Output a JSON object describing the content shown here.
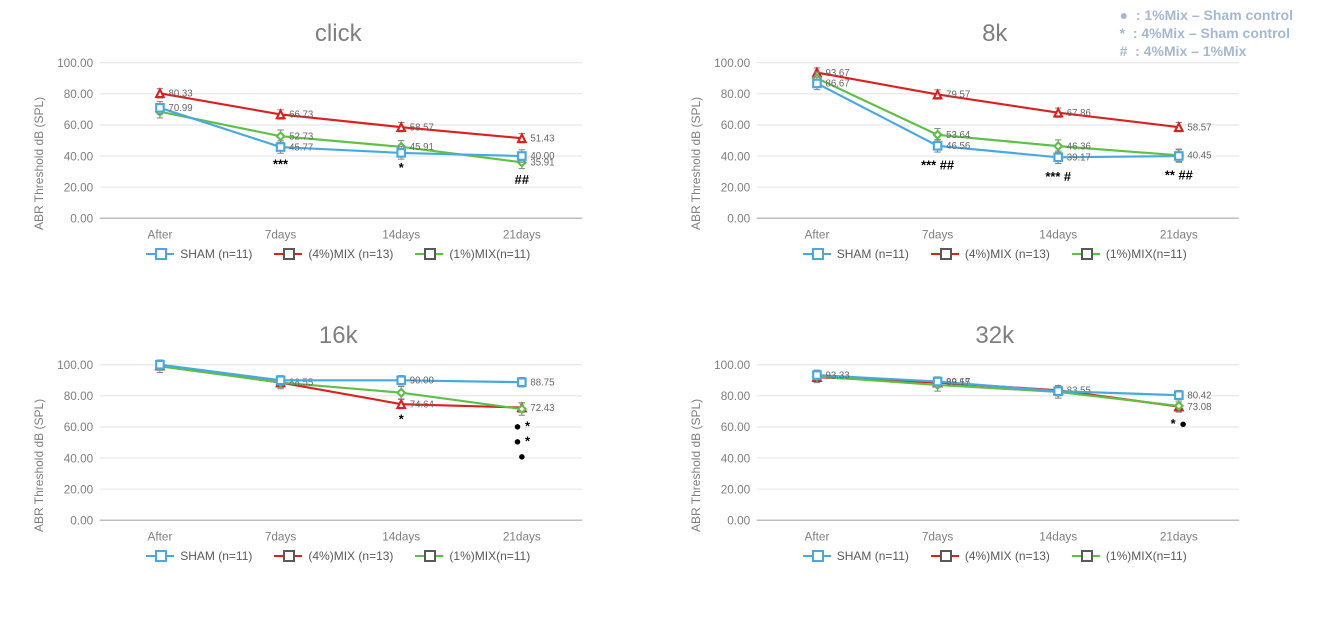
{
  "note": {
    "l1": "●  : 1%Mix – Sham control",
    "l2": "*  : 4%Mix – Sham control",
    "l3": "#  : 4%Mix – 1%Mix"
  },
  "common": {
    "ylabel": "ABR Threshold dB (SPL)",
    "ylim": [
      0,
      100
    ],
    "ytick_step": 20,
    "categories": [
      "After",
      "7days",
      "14days",
      "21days"
    ],
    "colors": {
      "sham": "#4aa8e0",
      "mix4": "#d92121",
      "mix1": "#5fbf47"
    },
    "grid_color": "#e6e6e6",
    "axis_color": "#b0b0b0",
    "background": "#ffffff",
    "marker": {
      "sham": "square",
      "mix4": "triangle",
      "mix1": "diamond"
    },
    "line_width": 2,
    "marker_size": 7,
    "title_fontsize": 24,
    "label_fontsize": 12
  },
  "legend": {
    "sham": "SHAM (n=11)",
    "mix4": "(4%)MIX (n=13)",
    "mix1": "(1%)MIX(n=11)"
  },
  "panels": [
    {
      "key": "click",
      "title": "click",
      "series": {
        "sham": {
          "y": [
            70.99,
            45.77,
            42.0,
            40.0
          ],
          "err": [
            4,
            4,
            4,
            4
          ],
          "labels": [
            "70.99",
            "45.77",
            "",
            "40.00"
          ]
        },
        "mix4": {
          "y": [
            80.33,
            66.73,
            58.57,
            51.43
          ],
          "err": [
            3,
            3,
            3,
            3
          ],
          "labels": [
            "80.33",
            "66.73",
            "58.57",
            "51.43"
          ]
        },
        "mix1": {
          "y": [
            68.5,
            52.73,
            45.91,
            35.91
          ],
          "err": [
            4,
            4,
            4,
            4
          ],
          "labels": [
            "",
            "52.73",
            "45.91",
            "35.91"
          ]
        }
      },
      "sig": [
        {
          "x": 1,
          "text": "***",
          "dy": 20
        },
        {
          "x": 2,
          "text": "*",
          "dy": 18
        },
        {
          "x": 3,
          "text": "##",
          "dy": 20
        }
      ]
    },
    {
      "key": "8k",
      "title": "8k",
      "series": {
        "sham": {
          "y": [
            86.67,
            46.56,
            39.17,
            40.0
          ],
          "err": [
            4,
            4,
            4,
            4
          ],
          "labels": [
            "86.67",
            "46.56",
            "39.17",
            ""
          ]
        },
        "mix4": {
          "y": [
            93.67,
            79.57,
            67.86,
            58.57
          ],
          "err": [
            3,
            3,
            3,
            3
          ],
          "labels": [
            "93.67",
            "79.57",
            "67.86",
            "58.57"
          ]
        },
        "mix1": {
          "y": [
            90.0,
            53.64,
            46.36,
            40.45
          ],
          "err": [
            4,
            4,
            4,
            4
          ],
          "labels": [
            "",
            "53.64",
            "46.36",
            "40.45"
          ]
        }
      },
      "sig": [
        {
          "x": 1,
          "text": "*** ##",
          "dy": 22
        },
        {
          "x": 2,
          "text": "*** #",
          "dy": 22
        },
        {
          "x": 3,
          "text": "** ##",
          "dy": 22
        }
      ]
    },
    {
      "key": "16k",
      "title": "16k",
      "series": {
        "sham": {
          "y": [
            100.0,
            90.0,
            90.0,
            88.75
          ],
          "err": [
            3,
            3,
            3,
            3
          ],
          "labels": [
            "",
            "",
            "90.00",
            "88.75"
          ]
        },
        "mix4": {
          "y": [
            99.5,
            88.5,
            74.64,
            72.43
          ],
          "err": [
            3,
            3,
            3,
            3
          ],
          "labels": [
            "",
            "",
            "74.64",
            "72.43"
          ]
        },
        "mix1": {
          "y": [
            99.0,
            88.55,
            82.0,
            71.5
          ],
          "err": [
            4,
            4,
            4,
            4
          ],
          "labels": [
            "",
            "88.55",
            "",
            ""
          ]
        }
      },
      "sig": [
        {
          "x": 2,
          "text": "*",
          "dy": 18
        },
        {
          "x": 3,
          "text": "● *",
          "dy": 20
        },
        {
          "x": 3,
          "text": "● *",
          "dy": 34
        },
        {
          "x": 3,
          "text": "●",
          "dy": 48
        }
      ]
    },
    {
      "key": "32k",
      "title": "32k",
      "series": {
        "sham": {
          "y": [
            93.33,
            89.17,
            83.0,
            80.42
          ],
          "err": [
            3,
            3,
            3,
            3
          ],
          "labels": [
            "93.33",
            "89.17",
            "",
            "80.42"
          ]
        },
        "mix4": {
          "y": [
            92.0,
            88.55,
            83.55,
            73.08
          ],
          "err": [
            3,
            3,
            3,
            3
          ],
          "labels": [
            "",
            "88.55",
            "83.55",
            "73.08"
          ]
        },
        "mix1": {
          "y": [
            92.5,
            87.0,
            82.5,
            73.5
          ],
          "err": [
            4,
            4,
            4,
            4
          ],
          "labels": [
            "",
            "",
            "",
            ""
          ]
        }
      },
      "sig": [
        {
          "x": 3,
          "text": "* ●",
          "dy": 20
        }
      ]
    }
  ]
}
